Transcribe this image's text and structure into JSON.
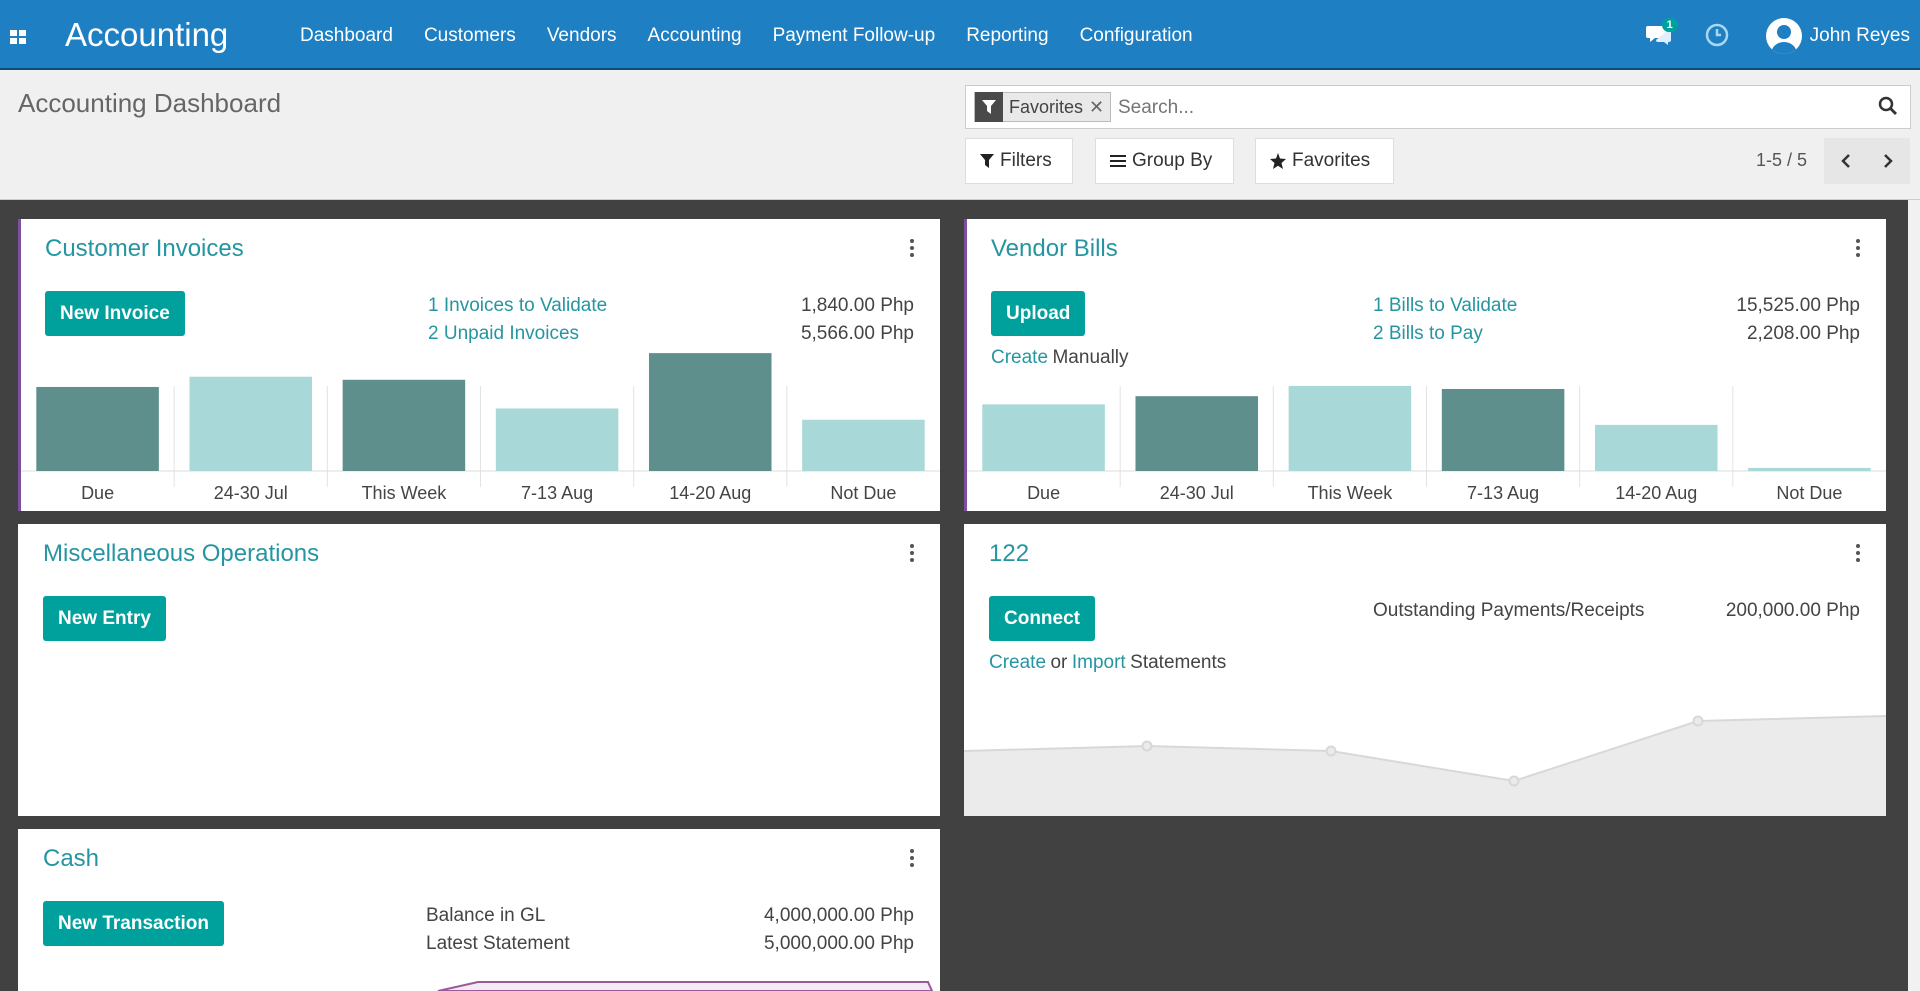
{
  "nav": {
    "brand": "Accounting",
    "menu": [
      "Dashboard",
      "Customers",
      "Vendors",
      "Accounting",
      "Payment Follow-up",
      "Reporting",
      "Configuration"
    ],
    "chat_badge": "1",
    "user": "John Reyes",
    "color": "#1e7fc3"
  },
  "control": {
    "title": "Accounting Dashboard",
    "facet": "Favorites",
    "search_placeholder": "Search...",
    "filters": "Filters",
    "group_by": "Group By",
    "favorites": "Favorites",
    "pager": "1-5 / 5"
  },
  "accent_color": "#00a09d",
  "cards": {
    "customer_invoices": {
      "title": "Customer Invoices",
      "button": "New Invoice",
      "line1_label": "1 Invoices to Validate",
      "line1_amount": "1,840.00 Php",
      "line2_label": "2 Unpaid Invoices",
      "line2_amount": "5,566.00 Php"
    },
    "vendor_bills": {
      "title": "Vendor Bills",
      "button": "Upload",
      "create_link": "Create",
      "create_text": "Manually",
      "line1_label": "1 Bills to Validate",
      "line1_amount": "15,525.00 Php",
      "line2_label": "2 Bills to Pay",
      "line2_amount": "2,208.00 Php"
    },
    "misc": {
      "title": "Miscellaneous Operations",
      "button": "New Entry"
    },
    "bank": {
      "title": "122",
      "button": "Connect",
      "create_link": "Create",
      "or_text": "or",
      "import_link": "Import",
      "statements_text": "Statements",
      "outstanding_label": "Outstanding Payments/Receipts",
      "outstanding_amount": "200,000.00 Php"
    },
    "cash": {
      "title": "Cash",
      "button": "New Transaction",
      "balance_label": "Balance in GL",
      "balance_amount": "4,000,000.00 Php",
      "statement_label": "Latest Statement",
      "statement_amount": "5,000,000.00 Php"
    }
  },
  "chart_data": [
    {
      "type": "bar",
      "name": "customer_invoices",
      "categories": [
        "Due",
        "24-30 Jul",
        "This Week",
        "7-13 Aug",
        "14-20 Aug",
        "Not Due"
      ],
      "values": [
        82,
        92,
        89,
        61,
        115,
        50
      ],
      "bar_kind": [
        "past",
        "future",
        "past",
        "future",
        "past",
        "future"
      ],
      "colors": {
        "past": "#5f8f8c",
        "future": "#a8d8d8"
      }
    },
    {
      "type": "bar",
      "name": "vendor_bills",
      "categories": [
        "Due",
        "24-30 Jul",
        "This Week",
        "7-13 Aug",
        "14-20 Aug",
        "Not Due"
      ],
      "values": [
        65,
        73,
        83,
        80,
        45,
        3
      ],
      "bar_kind": [
        "future",
        "past",
        "future",
        "past",
        "future",
        "future"
      ],
      "colors": {
        "past": "#5f8f8c",
        "future": "#a8d8d8"
      }
    },
    {
      "type": "area",
      "name": "bank_balance",
      "values": [
        55,
        60,
        55,
        25,
        85,
        90
      ],
      "colors": {
        "fill": "#ebebeb",
        "line": "#d8d8d8"
      }
    }
  ]
}
